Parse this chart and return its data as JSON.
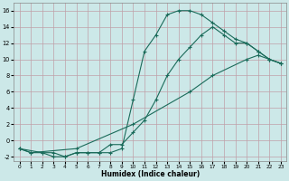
{
  "xlabel": "Humidex (Indice chaleur)",
  "xlim": [
    -0.5,
    23.5
  ],
  "ylim": [
    -2.5,
    17
  ],
  "xticks": [
    0,
    1,
    2,
    3,
    4,
    5,
    6,
    7,
    8,
    9,
    10,
    11,
    12,
    13,
    14,
    15,
    16,
    17,
    18,
    19,
    20,
    21,
    22,
    23
  ],
  "yticks": [
    -2,
    0,
    2,
    4,
    6,
    8,
    10,
    12,
    14,
    16
  ],
  "bg_color": "#cce8e8",
  "grid_color": "#c0a0a8",
  "line_color": "#1a6b5a",
  "curve1_x": [
    0,
    1,
    2,
    3,
    4,
    5,
    6,
    7,
    8,
    9,
    10,
    11,
    12,
    13,
    14,
    15,
    16,
    17,
    18,
    19,
    20,
    21,
    22,
    23
  ],
  "curve1_y": [
    -1,
    -1.5,
    -1.5,
    -1.5,
    -2,
    -1.5,
    -1.5,
    -1.5,
    -1.5,
    -1,
    5,
    11,
    13,
    15.5,
    16,
    16,
    15.5,
    14.5,
    13.5,
    12.5,
    12,
    11,
    10,
    9.5
  ],
  "curve2_x": [
    0,
    2,
    3,
    4,
    5,
    6,
    7,
    8,
    9,
    10,
    11,
    12,
    13,
    14,
    15,
    16,
    17,
    18,
    19,
    20,
    21,
    22,
    23
  ],
  "curve2_y": [
    -1,
    -1.5,
    -2,
    -2,
    -1.5,
    -1.5,
    -1.5,
    -0.5,
    -0.5,
    1,
    2.5,
    5,
    8,
    10,
    11.5,
    13,
    14,
    13,
    12,
    12,
    11,
    10,
    9.5
  ],
  "curve3_x": [
    0,
    1,
    5,
    10,
    15,
    17,
    20,
    21,
    22,
    23
  ],
  "curve3_y": [
    -1,
    -1.5,
    -1,
    2,
    6,
    8,
    10,
    10.5,
    10,
    9.5
  ]
}
